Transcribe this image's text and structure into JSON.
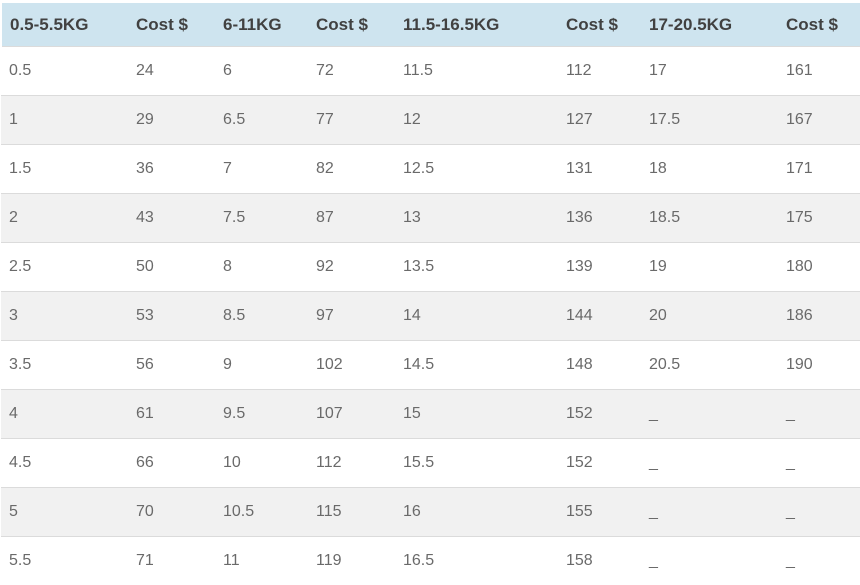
{
  "table": {
    "headers": [
      "0.5-5.5KG",
      "Cost $",
      "6-11KG",
      "Cost $",
      "11.5-16.5KG",
      "Cost $",
      "17-20.5KG",
      "Cost $"
    ],
    "rows": [
      [
        "0.5",
        "24",
        "6",
        "72",
        "11.5",
        "112",
        "17",
        "161"
      ],
      [
        "1",
        "29",
        "6.5",
        "77",
        "12",
        "127",
        "17.5",
        "167"
      ],
      [
        "1.5",
        "36",
        "7",
        "82",
        "12.5",
        "131",
        "18",
        "171"
      ],
      [
        "2",
        "43",
        "7.5",
        "87",
        "13",
        "136",
        "18.5",
        "175"
      ],
      [
        "2.5",
        "50",
        "8",
        "92",
        "13.5",
        "139",
        "19",
        "180"
      ],
      [
        "3",
        "53",
        "8.5",
        "97",
        "14",
        "144",
        "20",
        "186"
      ],
      [
        "3.5",
        "56",
        "9",
        "102",
        "14.5",
        "148",
        "20.5",
        "190"
      ],
      [
        "4",
        "61",
        "9.5",
        "107",
        "15",
        "152",
        "_",
        "_"
      ],
      [
        "4.5",
        "66",
        "10",
        "112",
        "15.5",
        "152",
        "_",
        "_"
      ],
      [
        "5",
        "70",
        "10.5",
        "115",
        "16",
        "155",
        "_",
        "_"
      ],
      [
        "5.5",
        "71",
        "11",
        "119",
        "16.5",
        "158",
        "_",
        "_"
      ]
    ]
  },
  "colors": {
    "header_bg": "#cee4ef",
    "stripe_bg": "#f1f1f1",
    "header_text": "#414141",
    "cell_text": "#6a6a6a",
    "row_border": "#dbdbdb"
  },
  "chart_data": {
    "type": "table",
    "columns": [
      "0.5-5.5KG",
      "Cost $",
      "6-11KG",
      "Cost $",
      "11.5-16.5KG",
      "Cost $",
      "17-20.5KG",
      "Cost $"
    ],
    "rows": [
      [
        "0.5",
        24,
        "6",
        72,
        "11.5",
        112,
        "17",
        161
      ],
      [
        "1",
        29,
        "6.5",
        77,
        "12",
        127,
        "17.5",
        167
      ],
      [
        "1.5",
        36,
        "7",
        82,
        "12.5",
        131,
        "18",
        171
      ],
      [
        "2",
        43,
        "7.5",
        87,
        "13",
        136,
        "18.5",
        175
      ],
      [
        "2.5",
        50,
        "8",
        92,
        "13.5",
        139,
        "19",
        180
      ],
      [
        "3",
        53,
        "8.5",
        97,
        "14",
        144,
        "20",
        186
      ],
      [
        "3.5",
        56,
        "9",
        102,
        "14.5",
        148,
        "20.5",
        190
      ],
      [
        "4",
        61,
        "9.5",
        107,
        "15",
        152,
        "_",
        "_"
      ],
      [
        "4.5",
        66,
        "10",
        112,
        "15.5",
        152,
        "_",
        "_"
      ],
      [
        "5",
        70,
        "10.5",
        115,
        "16",
        155,
        "_",
        "_"
      ],
      [
        "5.5",
        71,
        "11",
        119,
        "16.5",
        158,
        "_",
        "_"
      ]
    ]
  }
}
